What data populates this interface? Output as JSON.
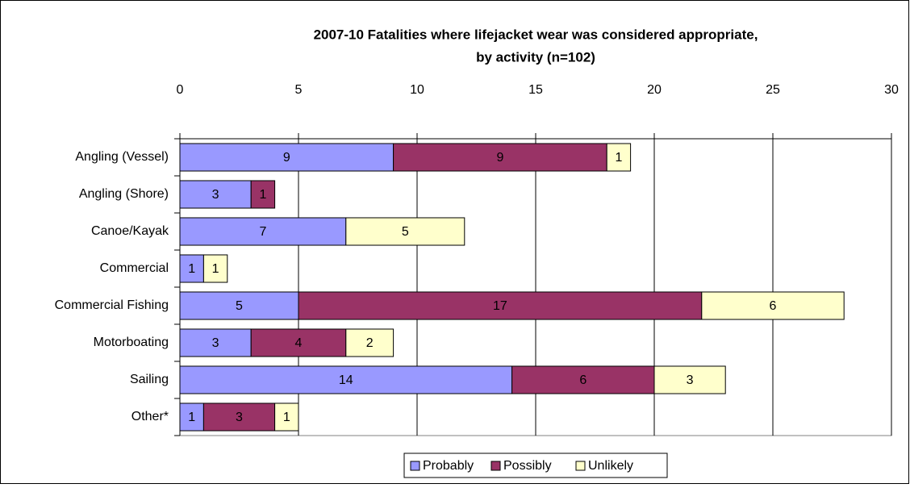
{
  "chart_data": {
    "type": "stacked_barh",
    "title": [
      "2007-10 Fatalities where lifejacket wear was considered appropriate,",
      "by activity (n=102)"
    ],
    "categories": [
      "Angling (Vessel)",
      "Angling (Shore)",
      "Canoe/Kayak",
      "Commercial",
      "Commercial Fishing",
      "Motorboating",
      "Sailing",
      "Other*"
    ],
    "series": [
      {
        "name": "Probably",
        "color": "#9999ff",
        "values": [
          9,
          3,
          7,
          1,
          5,
          3,
          14,
          1
        ]
      },
      {
        "name": "Possibly",
        "color": "#993366",
        "values": [
          9,
          1,
          null,
          null,
          17,
          4,
          6,
          3
        ]
      },
      {
        "name": "Unlikely",
        "color": "#ffffcc",
        "values": [
          1,
          null,
          5,
          1,
          6,
          2,
          3,
          1
        ]
      }
    ],
    "xlim": [
      0,
      30
    ],
    "xticks": [
      0,
      5,
      10,
      15,
      20,
      25,
      30
    ],
    "grid": true,
    "legend": "bottom"
  }
}
